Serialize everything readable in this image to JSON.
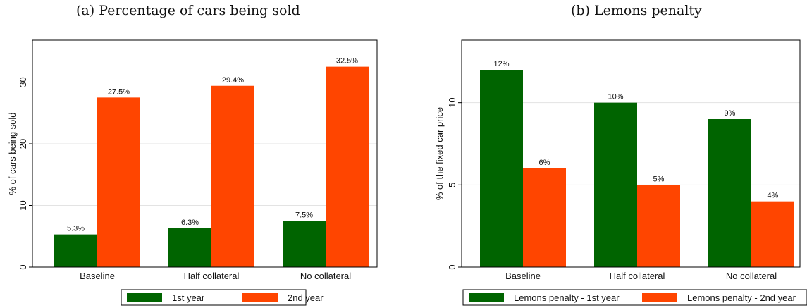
{
  "chart_data": [
    {
      "type": "bar",
      "title": "(a) Percentage of cars being sold",
      "categories": [
        "Baseline",
        "Half collateral",
        "No collateral"
      ],
      "series": [
        {
          "name": "1st year",
          "values": [
            5.3,
            6.3,
            7.5
          ],
          "labels": [
            "5.3%",
            "6.3%",
            "7.5%"
          ],
          "color": "#006400"
        },
        {
          "name": "2nd year",
          "values": [
            27.5,
            29.4,
            32.5
          ],
          "labels": [
            "27.5%",
            "29.4%",
            "32.5%"
          ],
          "color": "#ff4500"
        }
      ],
      "ylabel": "% of cars being sold",
      "ylim": [
        0,
        36.8
      ],
      "yticks": [
        0,
        10,
        20,
        30
      ],
      "ytick_labels": [
        "0",
        "10",
        "20",
        "30"
      ],
      "grid": true,
      "legend_position": "bottom"
    },
    {
      "type": "bar",
      "title": "(b) Lemons penalty",
      "categories": [
        "Baseline",
        "Half collateral",
        "No collateral"
      ],
      "series": [
        {
          "name": "Lemons penalty - 1st year",
          "values": [
            12,
            10,
            9
          ],
          "labels": [
            "12%",
            "10%",
            "9%"
          ],
          "color": "#006400"
        },
        {
          "name": "Lemons penalty - 2nd year",
          "values": [
            6,
            5,
            4
          ],
          "labels": [
            "6%",
            "5%",
            "4%"
          ],
          "color": "#ff4500"
        }
      ],
      "ylabel": "% of the fixed car price",
      "ylim": [
        0,
        13.8
      ],
      "yticks": [
        0,
        5,
        10
      ],
      "ytick_labels": [
        "0",
        "5",
        "10"
      ],
      "grid": true,
      "legend_position": "bottom"
    }
  ]
}
